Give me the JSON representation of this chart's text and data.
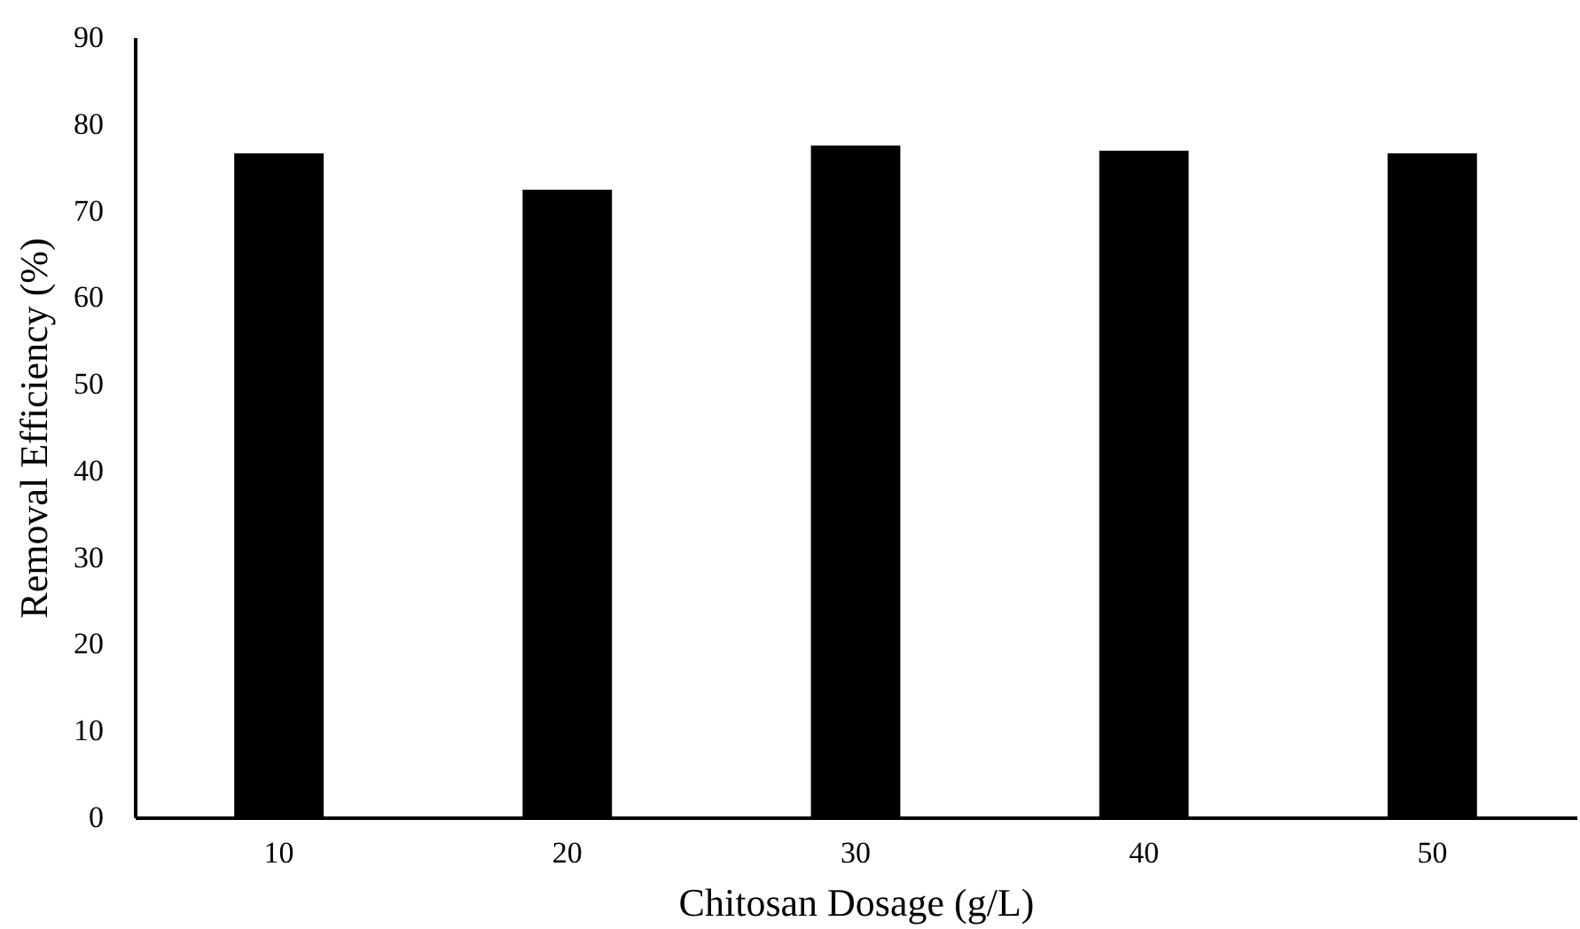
{
  "chart_data": {
    "type": "bar",
    "xlabel": "Chitosan Dosage (g/L)",
    "ylabel": "Removal Efficiency (%)",
    "categories": [
      "10",
      "20",
      "30",
      "40",
      "50"
    ],
    "values": [
      76.6,
      72.4,
      77.5,
      76.9,
      76.6
    ],
    "color": "#000000",
    "ylim": [
      0,
      90
    ],
    "yticks": [
      0,
      10,
      20,
      30,
      40,
      50,
      60,
      70,
      80,
      90
    ],
    "grid": false
  }
}
